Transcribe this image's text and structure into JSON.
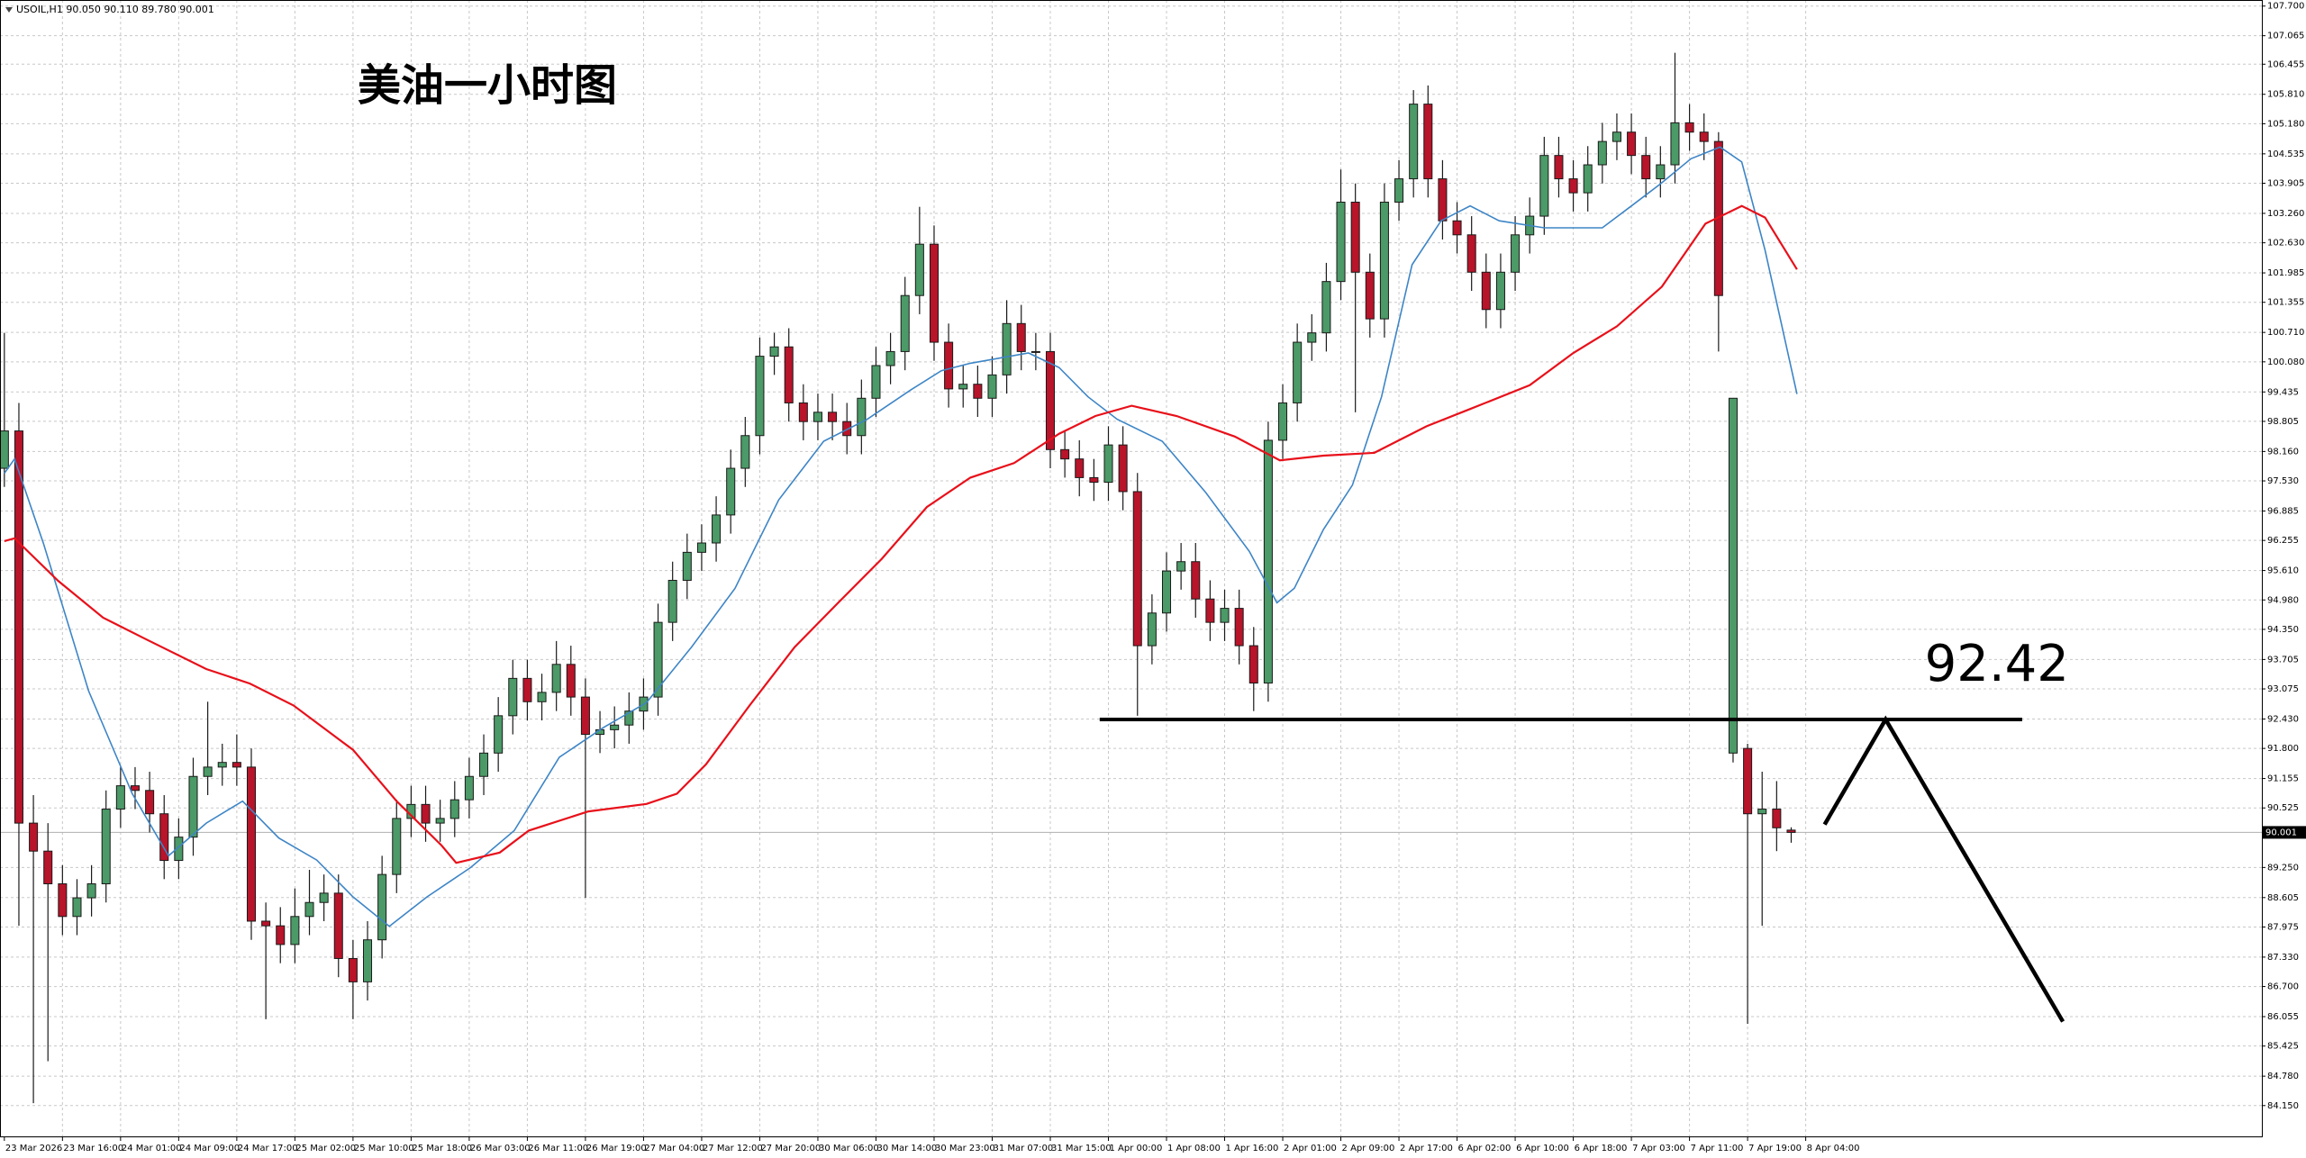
{
  "chart_data": {
    "type": "candlestick",
    "header": "USOIL,H1 90.050 90.110 89.780 90.001",
    "title": "美油一小时图",
    "up_color": "#4b9a67",
    "down_color": "#b8142a",
    "grid": true,
    "xlim": [
      -0.3,
      155.4
    ],
    "ylim": [
      83.49,
      107.83
    ],
    "open": [
      97.8,
      98.6,
      90.2,
      89.6,
      88.9,
      88.2,
      88.6,
      88.9,
      90.5,
      91,
      90.9,
      90.4,
      89.4,
      89.9,
      91.2,
      91.4,
      91.5,
      91.4,
      88.1,
      88,
      87.6,
      88.2,
      88.5,
      88.7,
      87.3,
      86.8,
      87.7,
      89.1,
      90.3,
      90.6,
      90.2,
      90.3,
      90.7,
      91.2,
      91.7,
      92.5,
      93.3,
      92.8,
      93,
      93.6,
      92.9,
      92.1,
      92.2,
      92.3,
      92.6,
      92.9,
      94.5,
      95.4,
      96,
      96.2,
      96.8,
      97.8,
      98.5,
      100.2,
      100.4,
      99.2,
      98.8,
      99,
      98.8,
      98.5,
      99.3,
      100,
      100.3,
      101.5,
      102.6,
      100.5,
      99.5,
      99.6,
      99.3,
      99.8,
      100.9,
      100.3,
      100.3,
      98.2,
      98,
      97.6,
      97.5,
      98.3,
      97.3,
      94,
      94.7,
      95.6,
      95.8,
      95,
      94.5,
      94.8,
      94,
      93.2,
      98.4,
      99.2,
      100.5,
      100.7,
      101.8,
      103.5,
      102,
      101,
      103.5,
      104,
      105.6,
      104,
      103.1,
      102.8,
      102,
      101.2,
      102,
      102.8,
      103.2,
      104.5,
      104,
      103.7,
      104.3,
      104.8,
      105,
      104.5,
      104,
      104.3,
      105.2,
      105,
      104.8,
      91.7,
      91.8,
      90.4,
      90.5,
      90.05
    ],
    "high": [
      100.7,
      99.2,
      90.8,
      90.2,
      89.3,
      89,
      89.3,
      90.9,
      91.4,
      91.4,
      91.3,
      90.8,
      90.3,
      91.6,
      92.8,
      91.9,
      92.1,
      91.8,
      88.5,
      88.4,
      88.8,
      89.2,
      89.1,
      89.1,
      87.7,
      88.1,
      89.5,
      90.7,
      91,
      91,
      90.7,
      91.1,
      91.6,
      92.1,
      92.9,
      93.7,
      93.7,
      93.4,
      94.1,
      94,
      93.3,
      92.6,
      92.7,
      93,
      93.3,
      94.9,
      95.8,
      96.4,
      96.6,
      97.2,
      98.2,
      98.9,
      100.6,
      100.7,
      100.8,
      99.6,
      99.4,
      99.4,
      99.2,
      99.7,
      100.4,
      100.7,
      101.9,
      103.4,
      103,
      100.9,
      100,
      100,
      100.2,
      101.4,
      101.3,
      100.7,
      100.7,
      98.6,
      98.4,
      98,
      98.7,
      98.7,
      97.7,
      95.1,
      96,
      96.2,
      96.2,
      95.4,
      95.2,
      95.2,
      94.4,
      98.8,
      99.6,
      100.9,
      101.1,
      102.2,
      104.2,
      103.9,
      102.4,
      103.9,
      104.4,
      105.9,
      106,
      104.4,
      103.5,
      103.2,
      102.4,
      102.4,
      103.2,
      103.6,
      104.9,
      104.9,
      104.4,
      104.7,
      105.2,
      105.4,
      105.4,
      104.9,
      104.7,
      106.7,
      105.6,
      105.4,
      105,
      99.3,
      91.9,
      91.3,
      91.1,
      90.11
    ],
    "low": [
      97.4,
      88,
      84.2,
      85.1,
      87.8,
      87.8,
      88.2,
      88.5,
      90.1,
      90.5,
      90,
      89,
      89,
      89.5,
      90.8,
      91,
      91,
      87.7,
      86,
      87.2,
      87.2,
      87.8,
      88.1,
      86.9,
      86,
      86.4,
      87.3,
      88.7,
      89.9,
      89.8,
      89.8,
      89.9,
      90.3,
      90.8,
      91.3,
      92.1,
      92.4,
      92.4,
      92.6,
      92.5,
      88.6,
      91.7,
      91.8,
      91.9,
      92.2,
      92.5,
      94.1,
      95,
      95.6,
      95.8,
      96.4,
      97.4,
      98.1,
      99.8,
      98.8,
      98.4,
      98.4,
      98.4,
      98.1,
      98.1,
      98.9,
      99.6,
      99.9,
      101.1,
      100.1,
      99.1,
      99.1,
      98.9,
      98.9,
      99.4,
      99.9,
      99.9,
      97.8,
      97.6,
      97.2,
      97.1,
      97.1,
      96.9,
      92.5,
      93.6,
      94.3,
      95.2,
      94.6,
      94.1,
      94.1,
      93.6,
      92.6,
      92.8,
      98,
      98.8,
      100.1,
      100.3,
      101.4,
      99,
      100.6,
      100.6,
      103.1,
      103.6,
      103.6,
      102.7,
      102.4,
      101.6,
      100.8,
      100.8,
      101.6,
      102.4,
      102.8,
      103.6,
      103.3,
      103.3,
      103.9,
      104.4,
      104.1,
      103.6,
      103.6,
      103.9,
      104.6,
      104.4,
      100.3,
      91.5,
      85.9,
      88,
      89.6,
      89.78
    ],
    "close": [
      98.6,
      90.2,
      89.6,
      88.9,
      88.2,
      88.6,
      88.9,
      90.5,
      91,
      90.9,
      90.4,
      89.4,
      89.9,
      91.2,
      91.4,
      91.5,
      91.4,
      88.1,
      88,
      87.6,
      88.2,
      88.5,
      88.7,
      87.3,
      86.8,
      87.7,
      89.1,
      90.3,
      90.6,
      90.2,
      90.3,
      90.7,
      91.2,
      91.7,
      92.5,
      93.3,
      92.8,
      93,
      93.6,
      92.9,
      92.1,
      92.2,
      92.3,
      92.6,
      92.9,
      94.5,
      95.4,
      96,
      96.2,
      96.8,
      97.8,
      98.5,
      100.2,
      100.4,
      99.2,
      98.8,
      99,
      98.8,
      98.5,
      99.3,
      100,
      100.3,
      101.5,
      102.6,
      100.5,
      99.5,
      99.6,
      99.3,
      99.8,
      100.9,
      100.3,
      100.3,
      98.2,
      98,
      97.6,
      97.5,
      98.3,
      97.3,
      94,
      94.7,
      95.6,
      95.8,
      95,
      94.5,
      94.8,
      94,
      93.2,
      98.4,
      99.2,
      100.5,
      100.7,
      101.8,
      103.5,
      102,
      101,
      103.5,
      104,
      105.6,
      104,
      103.1,
      102.8,
      102,
      101.2,
      102,
      102.8,
      103.2,
      104.5,
      104,
      103.7,
      104.3,
      104.8,
      105,
      104.5,
      104,
      104.3,
      105.2,
      105,
      104.8,
      101.5,
      99.3,
      90.4,
      90.5,
      90.1,
      90.001
    ],
    "lines": [
      {
        "color": "#3d85c6",
        "x": [
          0,
          0.7,
          2.7,
          5.8,
          8.8,
          11.3,
          13.9,
          16.4,
          18.9,
          21.5,
          24,
          26.5,
          29.1,
          32.1,
          35.1,
          38.2,
          41.2,
          44.2,
          47.3,
          50.3,
          53.3,
          56.4,
          59.4,
          62.4,
          64.5,
          66.5,
          70.5,
          72.6,
          74.6,
          76.6,
          79.7,
          82.7,
          85.7,
          87.6,
          88.8,
          90.8,
          92.8,
          94.8,
          96.9,
          98.9,
          100.9,
          102.9,
          106,
          110,
          112,
          114,
          116.1,
          118.1,
          119.6,
          121.2,
          123.4
        ],
        "values": [
          97.69,
          98,
          96.18,
          93.03,
          90.83,
          89.5,
          90.2,
          90.67,
          89.88,
          89.41,
          88.62,
          87.99,
          88.62,
          89.25,
          90.04,
          91.61,
          92.24,
          92.78,
          93.97,
          95.23,
          97.12,
          98.38,
          98.85,
          99.48,
          99.89,
          100.05,
          100.27,
          99.96,
          99.33,
          98.85,
          98.38,
          97.28,
          96.02,
          94.92,
          95.23,
          96.49,
          97.44,
          99.33,
          102.16,
          103.1,
          103.42,
          103.1,
          102.95,
          102.95,
          103.42,
          103.89,
          104.43,
          104.68,
          104.36,
          102.47,
          99.39
        ]
      },
      {
        "color": "#e8101a",
        "x": [
          0,
          0.7,
          3.7,
          6.8,
          9.8,
          13.9,
          16.9,
          19.9,
          24,
          27,
          30.1,
          31.1,
          34.1,
          36.1,
          40.2,
          44.2,
          46.3,
          48.3,
          51.3,
          54.4,
          57.4,
          60.4,
          63.5,
          66.5,
          69.5,
          72.6,
          75.1,
          77.6,
          80.7,
          84.7,
          87.8,
          90.8,
          94.3,
          97.9,
          100.9,
          105,
          108,
          111,
          114.1,
          117.1,
          119.6,
          121.2,
          123.4
        ],
        "values": [
          96.24,
          96.3,
          95.39,
          94.6,
          94.13,
          93.5,
          93.19,
          92.72,
          91.77,
          90.67,
          89.72,
          89.35,
          89.57,
          90.04,
          90.45,
          90.61,
          90.83,
          91.46,
          92.72,
          93.97,
          94.92,
          95.86,
          96.97,
          97.6,
          97.91,
          98.54,
          98.92,
          99.14,
          98.92,
          98.48,
          97.97,
          98.07,
          98.13,
          98.7,
          99.07,
          99.58,
          100.27,
          100.84,
          101.69,
          103.04,
          103.42,
          103.17,
          102.06
        ]
      }
    ],
    "level": 92.42,
    "level_x": [
      75.4,
      138.9
    ],
    "projection": {
      "x": [
        125.3,
        129.5,
        141.7
      ],
      "y": [
        90.17,
        92.42,
        85.95
      ]
    },
    "yticks": [
      {
        "value": 107.7,
        "label": "107.700"
      },
      {
        "value": 107.065,
        "label": "107.065"
      },
      {
        "value": 106.455,
        "label": "106.455"
      },
      {
        "value": 105.81,
        "label": "105.810"
      },
      {
        "value": 105.18,
        "label": "105.180"
      },
      {
        "value": 104.535,
        "label": "104.535"
      },
      {
        "value": 103.905,
        "label": "103.905"
      },
      {
        "value": 103.26,
        "label": "103.260"
      },
      {
        "value": 102.63,
        "label": "102.630"
      },
      {
        "value": 101.985,
        "label": "101.985"
      },
      {
        "value": 101.355,
        "label": "101.355"
      },
      {
        "value": 100.71,
        "label": "100.710"
      },
      {
        "value": 100.08,
        "label": "100.080"
      },
      {
        "value": 99.435,
        "label": "99.435"
      },
      {
        "value": 98.805,
        "label": "98.805"
      },
      {
        "value": 98.16,
        "label": "98.160"
      },
      {
        "value": 97.53,
        "label": "97.530"
      },
      {
        "value": 96.885,
        "label": "96.885"
      },
      {
        "value": 96.255,
        "label": "96.255"
      },
      {
        "value": 95.61,
        "label": "95.610"
      },
      {
        "value": 94.98,
        "label": "94.980"
      },
      {
        "value": 94.35,
        "label": "94.350"
      },
      {
        "value": 93.705,
        "label": "93.705"
      },
      {
        "value": 93.075,
        "label": "93.075"
      },
      {
        "value": 92.43,
        "label": "92.430"
      },
      {
        "value": 91.8,
        "label": "91.800"
      },
      {
        "value": 91.155,
        "label": "91.155"
      },
      {
        "value": 90.525,
        "label": "90.525"
      },
      {
        "value": 89.25,
        "label": "89.250"
      },
      {
        "value": 88.605,
        "label": "88.605"
      },
      {
        "value": 87.975,
        "label": "87.975"
      },
      {
        "value": 87.33,
        "label": "87.330"
      },
      {
        "value": 86.7,
        "label": "86.700"
      },
      {
        "value": 86.055,
        "label": "86.055"
      },
      {
        "value": 85.425,
        "label": "85.425"
      },
      {
        "value": 84.78,
        "label": "84.780"
      },
      {
        "value": 84.15,
        "label": "84.150"
      }
    ],
    "xticks": [
      {
        "value": 0,
        "label": "23 Mar 2026"
      },
      {
        "value": 4,
        "label": "23 Mar 16:00"
      },
      {
        "value": 8,
        "label": "24 Mar 01:00"
      },
      {
        "value": 12,
        "label": "24 Mar 09:00"
      },
      {
        "value": 16,
        "label": "24 Mar 17:00"
      },
      {
        "value": 20,
        "label": "25 Mar 02:00"
      },
      {
        "value": 24,
        "label": "25 Mar 10:00"
      },
      {
        "value": 28,
        "label": "25 Mar 18:00"
      },
      {
        "value": 32,
        "label": "26 Mar 03:00"
      },
      {
        "value": 36,
        "label": "26 Mar 11:00"
      },
      {
        "value": 40,
        "label": "26 Mar 19:00"
      },
      {
        "value": 44,
        "label": "27 Mar 04:00"
      },
      {
        "value": 48,
        "label": "27 Mar 12:00"
      },
      {
        "value": 52,
        "label": "27 Mar 20:00"
      },
      {
        "value": 56,
        "label": "30 Mar 06:00"
      },
      {
        "value": 60,
        "label": "30 Mar 14:00"
      },
      {
        "value": 64,
        "label": "30 Mar 23:00"
      },
      {
        "value": 68,
        "label": "31 Mar 07:00"
      },
      {
        "value": 72,
        "label": "31 Mar 15:00"
      },
      {
        "value": 76,
        "label": "1 Apr 00:00"
      },
      {
        "value": 80,
        "label": "1 Apr 08:00"
      },
      {
        "value": 84,
        "label": "1 Apr 16:00"
      },
      {
        "value": 88,
        "label": "2 Apr 01:00"
      },
      {
        "value": 92,
        "label": "2 Apr 09:00"
      },
      {
        "value": 96,
        "label": "2 Apr 17:00"
      },
      {
        "value": 100,
        "label": "6 Apr 02:00"
      },
      {
        "value": 104,
        "label": "6 Apr 10:00"
      },
      {
        "value": 108,
        "label": "6 Apr 18:00"
      },
      {
        "value": 112,
        "label": "7 Apr 03:00"
      },
      {
        "value": 116,
        "label": "7 Apr 11:00"
      },
      {
        "value": 120,
        "label": "7 Apr 19:00"
      },
      {
        "value": 124,
        "label": "8 Apr 04:00"
      }
    ]
  }
}
